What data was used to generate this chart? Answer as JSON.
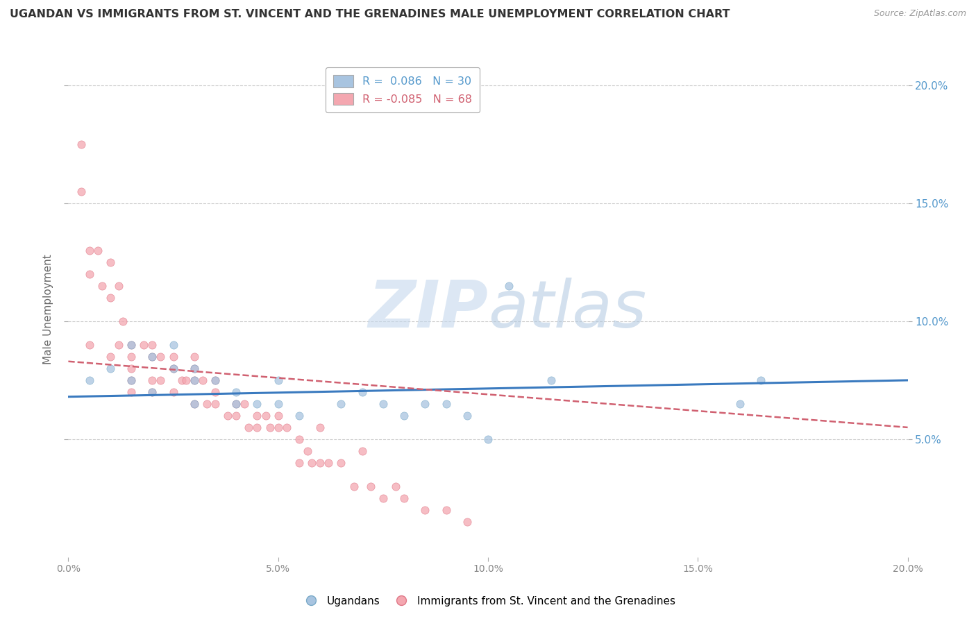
{
  "title": "UGANDAN VS IMMIGRANTS FROM ST. VINCENT AND THE GRENADINES MALE UNEMPLOYMENT CORRELATION CHART",
  "source_text": "Source: ZipAtlas.com",
  "ylabel": "Male Unemployment",
  "xlim": [
    0.0,
    0.2
  ],
  "ylim": [
    0.0,
    0.21
  ],
  "ytick_labels": [
    "5.0%",
    "10.0%",
    "15.0%",
    "20.0%"
  ],
  "ytick_vals": [
    0.05,
    0.1,
    0.15,
    0.2
  ],
  "xtick_labels": [
    "0.0%",
    "5.0%",
    "10.0%",
    "15.0%",
    "20.0%"
  ],
  "xtick_vals": [
    0.0,
    0.05,
    0.1,
    0.15,
    0.2
  ],
  "ugandan_color": "#a8c4e0",
  "ugandan_edge_color": "#7aaac8",
  "svg_color": "#f4a7b0",
  "svg_edge_color": "#e07888",
  "ugandan_R": "0.086",
  "ugandan_N": 30,
  "svg_R": "-0.085",
  "svg_N": 68,
  "ugandan_scatter_x": [
    0.005,
    0.01,
    0.015,
    0.015,
    0.02,
    0.02,
    0.025,
    0.025,
    0.03,
    0.03,
    0.03,
    0.035,
    0.04,
    0.04,
    0.045,
    0.05,
    0.05,
    0.055,
    0.065,
    0.07,
    0.075,
    0.08,
    0.085,
    0.09,
    0.095,
    0.1,
    0.105,
    0.115,
    0.16,
    0.165
  ],
  "ugandan_scatter_y": [
    0.075,
    0.08,
    0.09,
    0.075,
    0.085,
    0.07,
    0.09,
    0.08,
    0.075,
    0.08,
    0.065,
    0.075,
    0.07,
    0.065,
    0.065,
    0.065,
    0.075,
    0.06,
    0.065,
    0.07,
    0.065,
    0.06,
    0.065,
    0.065,
    0.06,
    0.05,
    0.115,
    0.075,
    0.065,
    0.075
  ],
  "svg_scatter_x": [
    0.003,
    0.003,
    0.005,
    0.005,
    0.005,
    0.007,
    0.008,
    0.01,
    0.01,
    0.01,
    0.012,
    0.012,
    0.013,
    0.015,
    0.015,
    0.015,
    0.015,
    0.015,
    0.018,
    0.02,
    0.02,
    0.02,
    0.02,
    0.022,
    0.022,
    0.025,
    0.025,
    0.025,
    0.027,
    0.028,
    0.03,
    0.03,
    0.03,
    0.03,
    0.032,
    0.033,
    0.035,
    0.035,
    0.035,
    0.038,
    0.04,
    0.04,
    0.042,
    0.043,
    0.045,
    0.045,
    0.047,
    0.048,
    0.05,
    0.05,
    0.052,
    0.055,
    0.055,
    0.057,
    0.058,
    0.06,
    0.06,
    0.062,
    0.065,
    0.068,
    0.07,
    0.072,
    0.075,
    0.078,
    0.08,
    0.085,
    0.09,
    0.095
  ],
  "svg_scatter_y": [
    0.175,
    0.155,
    0.13,
    0.12,
    0.09,
    0.13,
    0.115,
    0.125,
    0.11,
    0.085,
    0.115,
    0.09,
    0.1,
    0.09,
    0.085,
    0.08,
    0.075,
    0.07,
    0.09,
    0.09,
    0.085,
    0.075,
    0.07,
    0.085,
    0.075,
    0.085,
    0.08,
    0.07,
    0.075,
    0.075,
    0.085,
    0.08,
    0.075,
    0.065,
    0.075,
    0.065,
    0.075,
    0.07,
    0.065,
    0.06,
    0.065,
    0.06,
    0.065,
    0.055,
    0.06,
    0.055,
    0.06,
    0.055,
    0.055,
    0.06,
    0.055,
    0.05,
    0.04,
    0.045,
    0.04,
    0.055,
    0.04,
    0.04,
    0.04,
    0.03,
    0.045,
    0.03,
    0.025,
    0.03,
    0.025,
    0.02,
    0.02,
    0.015
  ],
  "ugandan_trendline_x": [
    0.0,
    0.2
  ],
  "ugandan_trendline_y": [
    0.068,
    0.075
  ],
  "svg_trendline_x": [
    0.0,
    0.2
  ],
  "svg_trendline_y": [
    0.083,
    0.055
  ],
  "watermark_zip": "ZIP",
  "watermark_atlas": "atlas",
  "background_color": "#ffffff",
  "trendline_blue": "#3a7abf",
  "trendline_pink": "#d06070",
  "tick_blue": "#5599cc",
  "tick_gray": "#888888"
}
